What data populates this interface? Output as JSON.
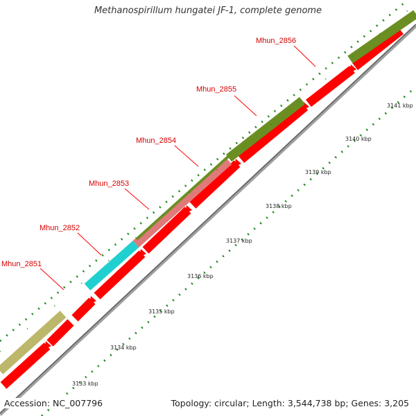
{
  "title": "Methanospirillum hungatei JF-1, complete genome",
  "footer": {
    "accession": "Accession: NC_007796",
    "stats": "Topology: circular; Length: 3,544,738 bp; Genes: 3,205"
  },
  "colors": {
    "backbone": "#9e9e9e",
    "forward_cds": "#ff0000",
    "tick": "#228b22",
    "label_line": "#ff0000",
    "label_text": "#d40000",
    "olive": "#6b8e23",
    "cyan": "#20d0d0",
    "pink": "#e07a7a",
    "khaki": "#bdb76b"
  },
  "ticks": [
    "3133 kbp",
    "3134 kbp",
    "3135 kbp",
    "3136 kbp",
    "3137 kbp",
    "3138 kbp",
    "3139 kbp",
    "3140 kbp",
    "3141 kbp"
  ],
  "genes": [
    {
      "label": "Mhun_2851"
    },
    {
      "label": "Mhun_2852"
    },
    {
      "label": "Mhun_2853"
    },
    {
      "label": "Mhun_2854"
    },
    {
      "label": "Mhun_2855"
    },
    {
      "label": "Mhun_2856"
    }
  ]
}
